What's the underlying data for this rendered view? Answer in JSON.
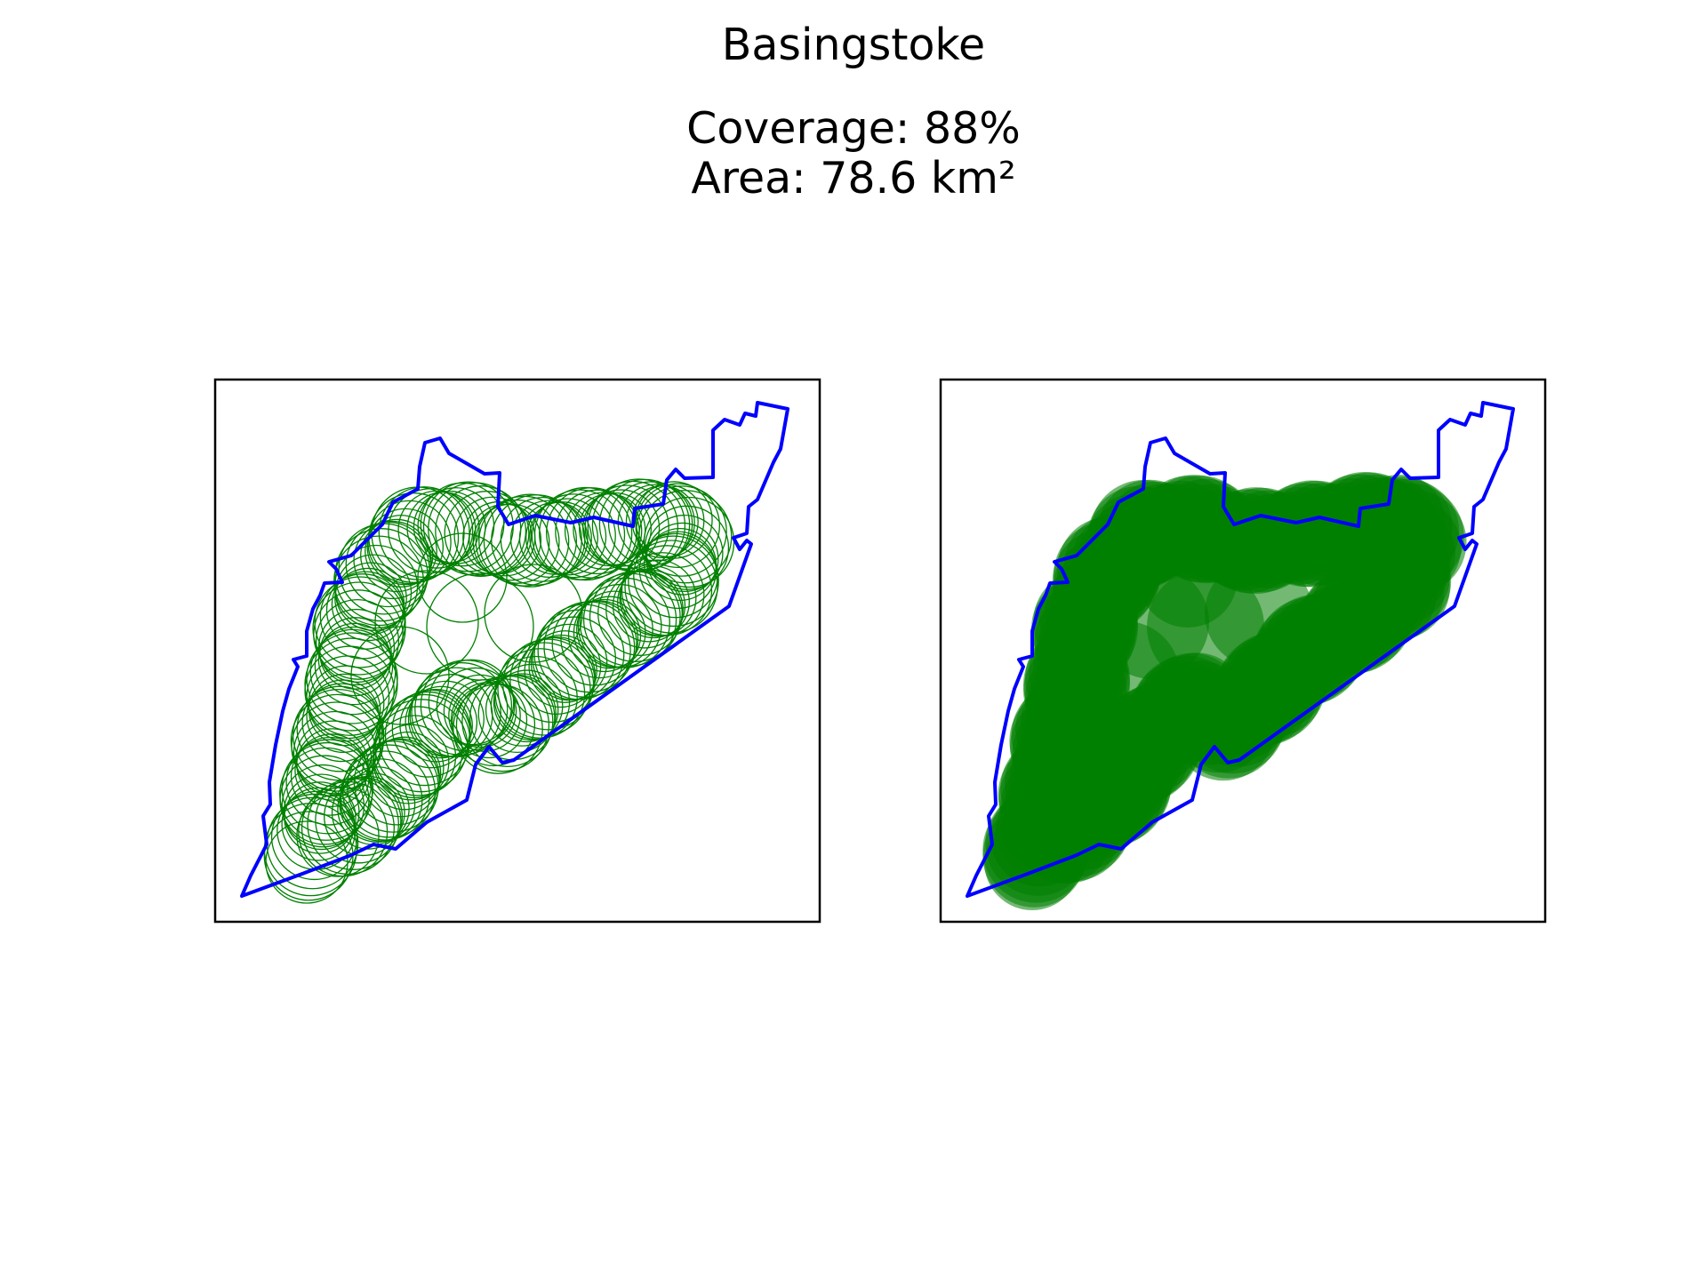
{
  "title": "Basingstoke",
  "stats": {
    "coverage": "Coverage: 88%",
    "area": "Area: 78.6 km²"
  },
  "colors": {
    "boundary": "#0000ff",
    "coverage": "#008000",
    "frame": "#000000"
  },
  "chart_data": [
    {
      "type": "map",
      "panel": "left",
      "style": "circle outlines",
      "title": "",
      "xlabel": "",
      "ylabel": ""
    },
    {
      "type": "map",
      "panel": "right",
      "style": "filled circles",
      "title": "",
      "xlabel": "",
      "ylabel": ""
    }
  ]
}
